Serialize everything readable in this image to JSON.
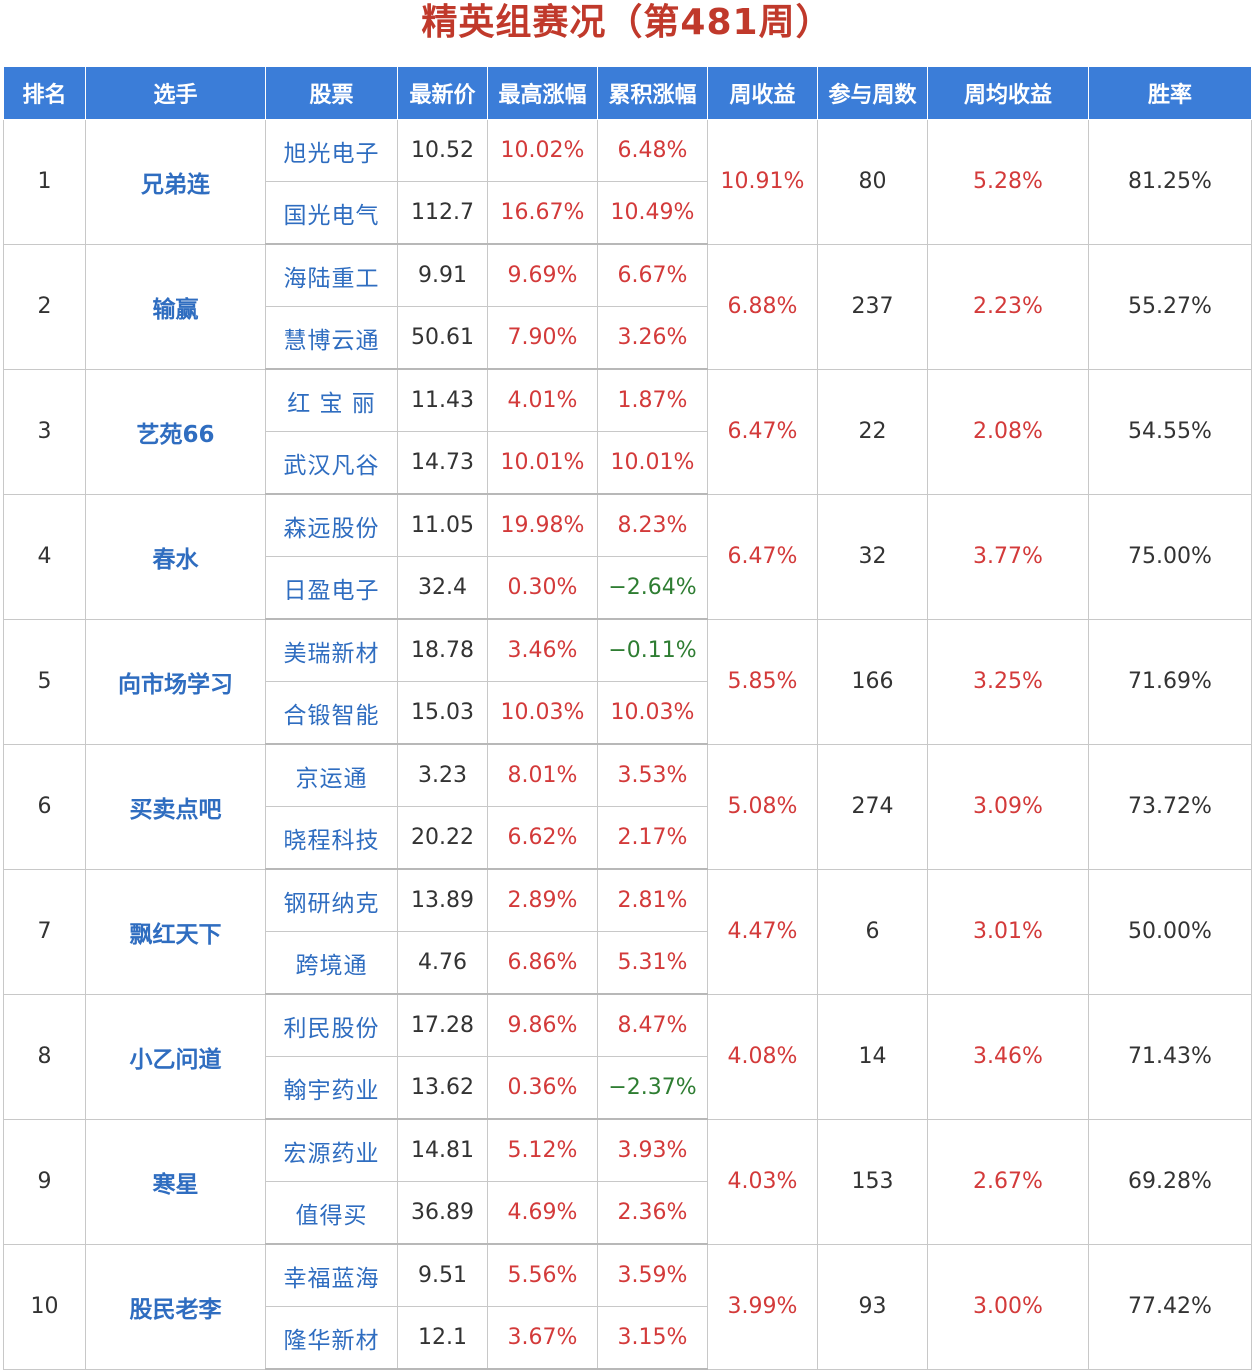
{
  "title": "精英组赛况（第481周）",
  "headers": [
    "排名",
    "选手",
    "股票",
    "最新价",
    "最高涨幅",
    "累积涨幅",
    "周收益",
    "参与周数",
    "周均收益",
    "胜率"
  ],
  "colors": {
    "header_bg": "#3b7dd8",
    "title": "#c0392b",
    "link_blue": "#2f6dc0",
    "positive": "#d33a3a",
    "negative": "#2e7d32"
  },
  "rows": [
    {
      "rank": "1",
      "player": "兄弟连",
      "weekly": "10.91%",
      "weeks": "80",
      "avg": "5.28%",
      "win": "81.25%",
      "stocks": [
        {
          "name": "旭光电子",
          "price": "10.52",
          "high": "10.02%",
          "cum": "6.48%"
        },
        {
          "name": "国光电气",
          "price": "112.7",
          "high": "16.67%",
          "cum": "10.49%"
        }
      ]
    },
    {
      "rank": "2",
      "player": "输赢",
      "weekly": "6.88%",
      "weeks": "237",
      "avg": "2.23%",
      "win": "55.27%",
      "stocks": [
        {
          "name": "海陆重工",
          "price": "9.91",
          "high": "9.69%",
          "cum": "6.67%"
        },
        {
          "name": "慧博云通",
          "price": "50.61",
          "high": "7.90%",
          "cum": "3.26%"
        }
      ]
    },
    {
      "rank": "3",
      "player": "艺苑66",
      "weekly": "6.47%",
      "weeks": "22",
      "avg": "2.08%",
      "win": "54.55%",
      "stocks": [
        {
          "name": "红 宝 丽",
          "price": "11.43",
          "high": "4.01%",
          "cum": "1.87%"
        },
        {
          "name": "武汉凡谷",
          "price": "14.73",
          "high": "10.01%",
          "cum": "10.01%"
        }
      ]
    },
    {
      "rank": "4",
      "player": "春水",
      "weekly": "6.47%",
      "weeks": "32",
      "avg": "3.77%",
      "win": "75.00%",
      "stocks": [
        {
          "name": "森远股份",
          "price": "11.05",
          "high": "19.98%",
          "cum": "8.23%"
        },
        {
          "name": "日盈电子",
          "price": "32.4",
          "high": "0.30%",
          "cum": "−2.64%"
        }
      ]
    },
    {
      "rank": "5",
      "player": "向市场学习",
      "weekly": "5.85%",
      "weeks": "166",
      "avg": "3.25%",
      "win": "71.69%",
      "stocks": [
        {
          "name": "美瑞新材",
          "price": "18.78",
          "high": "3.46%",
          "cum": "−0.11%"
        },
        {
          "name": "合锻智能",
          "price": "15.03",
          "high": "10.03%",
          "cum": "10.03%"
        }
      ]
    },
    {
      "rank": "6",
      "player": "买卖点吧",
      "weekly": "5.08%",
      "weeks": "274",
      "avg": "3.09%",
      "win": "73.72%",
      "stocks": [
        {
          "name": "京运通",
          "price": "3.23",
          "high": "8.01%",
          "cum": "3.53%"
        },
        {
          "name": "晓程科技",
          "price": "20.22",
          "high": "6.62%",
          "cum": "2.17%"
        }
      ]
    },
    {
      "rank": "7",
      "player": "飘红天下",
      "weekly": "4.47%",
      "weeks": "6",
      "avg": "3.01%",
      "win": "50.00%",
      "stocks": [
        {
          "name": "钢研纳克",
          "price": "13.89",
          "high": "2.89%",
          "cum": "2.81%"
        },
        {
          "name": "跨境通",
          "price": "4.76",
          "high": "6.86%",
          "cum": "5.31%"
        }
      ]
    },
    {
      "rank": "8",
      "player": "小乙问道",
      "weekly": "4.08%",
      "weeks": "14",
      "avg": "3.46%",
      "win": "71.43%",
      "stocks": [
        {
          "name": "利民股份",
          "price": "17.28",
          "high": "9.86%",
          "cum": "8.47%"
        },
        {
          "name": "翰宇药业",
          "price": "13.62",
          "high": "0.36%",
          "cum": "−2.37%"
        }
      ]
    },
    {
      "rank": "9",
      "player": "寒星",
      "weekly": "4.03%",
      "weeks": "153",
      "avg": "2.67%",
      "win": "69.28%",
      "stocks": [
        {
          "name": "宏源药业",
          "price": "14.81",
          "high": "5.12%",
          "cum": "3.93%"
        },
        {
          "name": "值得买",
          "price": "36.89",
          "high": "4.69%",
          "cum": "2.36%"
        }
      ]
    },
    {
      "rank": "10",
      "player": "股民老李",
      "weekly": "3.99%",
      "weeks": "93",
      "avg": "3.00%",
      "win": "77.42%",
      "stocks": [
        {
          "name": "幸福蓝海",
          "price": "9.51",
          "high": "5.56%",
          "cum": "3.59%"
        },
        {
          "name": "隆华新材",
          "price": "12.1",
          "high": "3.67%",
          "cum": "3.15%"
        }
      ]
    }
  ]
}
